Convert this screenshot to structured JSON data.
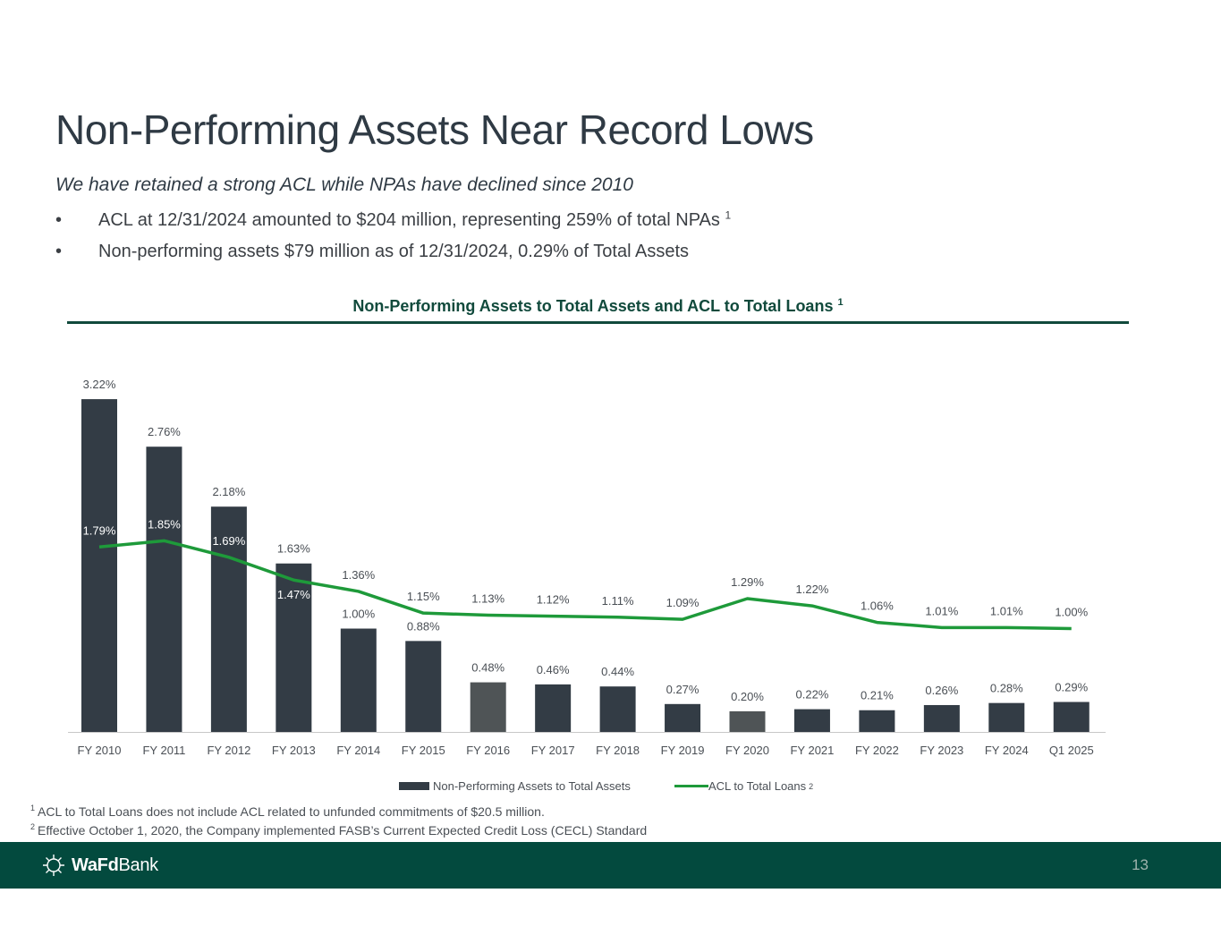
{
  "slide": {
    "title": "Non-Performing Assets Near Record Lows",
    "subtitle": "We have retained a strong ACL while NPAs have declined since 2010",
    "bullet_symbol": "•",
    "bullets": [
      {
        "text": "ACL at 12/31/2024 amounted to $204 million, representing 259% of total NPAs",
        "sup": "1"
      },
      {
        "text": "Non-performing assets $79 million as of 12/31/2024, 0.29% of Total Assets",
        "sup": ""
      }
    ],
    "chart_heading": "Non-Performing Assets to Total Assets and ACL to Total Loans",
    "chart_heading_sup": "1",
    "footnotes": [
      {
        "mark": "1",
        "text": "ACL to Total Loans does not include ACL related to unfunded commitments of $20.5 million."
      },
      {
        "mark": "2",
        "text": "Effective October 1, 2020, the Company implemented FASB’s Current Expected Credit Loss (CECL) Standard"
      }
    ],
    "footer": {
      "logo_bold": "WaFd",
      "logo_rest": "Bank",
      "page_number": "13"
    }
  },
  "chart_data": {
    "type": "bar",
    "categories": [
      "FY 2010",
      "FY 2011",
      "FY 2012",
      "FY 2013",
      "FY 2014",
      "FY 2015",
      "FY 2016",
      "FY 2017",
      "FY 2018",
      "FY 2019",
      "FY 2020",
      "FY 2021",
      "FY 2022",
      "FY 2023",
      "FY 2024",
      "Q1 2025"
    ],
    "series": [
      {
        "name": "Non-Performing Assets to Total Assets",
        "kind": "bar",
        "color": "#333c45",
        "values": [
          3.22,
          2.76,
          2.18,
          1.63,
          1.0,
          0.88,
          0.48,
          0.46,
          0.44,
          0.27,
          0.2,
          0.22,
          0.21,
          0.26,
          0.28,
          0.29
        ],
        "labels": [
          "3.22%",
          "2.76%",
          "2.18%",
          "1.63%",
          "1.00%",
          "0.88%",
          "0.48%",
          "0.46%",
          "0.44%",
          "0.27%",
          "0.20%",
          "0.22%",
          "0.21%",
          "0.26%",
          "0.28%",
          "0.29%"
        ]
      },
      {
        "name": "ACL to Total Loans",
        "name_sup": "2",
        "kind": "line",
        "color": "#1e9a3a",
        "values": [
          1.79,
          1.85,
          1.69,
          1.47,
          1.36,
          1.15,
          1.13,
          1.12,
          1.11,
          1.09,
          1.29,
          1.22,
          1.06,
          1.01,
          1.01,
          1.0
        ],
        "labels": [
          "1.79%",
          "1.85%",
          "1.69%",
          "1.47%",
          "1.36%",
          "1.15%",
          "1.13%",
          "1.12%",
          "1.11%",
          "1.09%",
          "1.29%",
          "1.22%",
          "1.06%",
          "1.01%",
          "1.01%",
          "1.00%"
        ]
      }
    ],
    "highlight_bar_color": "#4f5456",
    "highlighted_categories": [
      "FY 2016",
      "FY 2020"
    ],
    "ylim": [
      0,
      3.5
    ],
    "grid": false,
    "legend_position": "bottom"
  }
}
